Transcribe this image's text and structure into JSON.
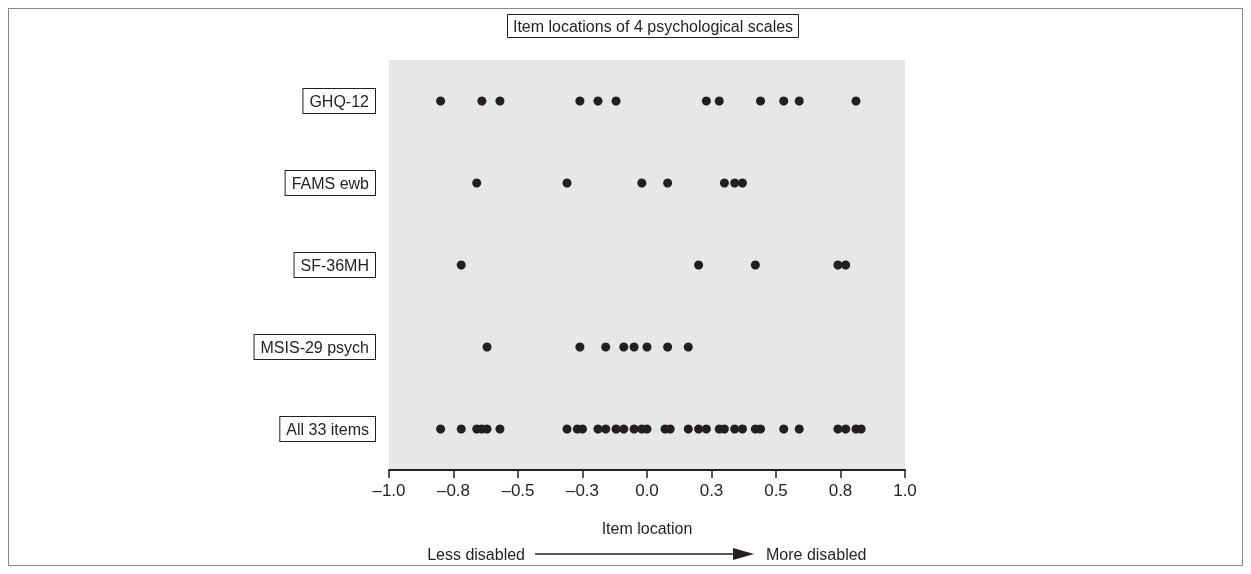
{
  "chart_data": {
    "type": "scatter",
    "orientation": "horizontal",
    "title": "Item locations of 4 psychological scales",
    "xlabel": "Item location",
    "annotations": [
      "Less disabled",
      "More disabled"
    ],
    "marker": "circle",
    "grid": false,
    "xlim": [
      -1,
      1
    ],
    "xticks": [
      {
        "value": -1,
        "label": "–1.0"
      },
      {
        "value": -0.75,
        "label": "–0.8"
      },
      {
        "value": -0.5,
        "label": "–0.5"
      },
      {
        "value": -0.25,
        "label": "–0.3"
      },
      {
        "value": 0,
        "label": "0.0"
      },
      {
        "value": 0.25,
        "label": "0.3"
      },
      {
        "value": 0.5,
        "label": "0.5"
      },
      {
        "value": 0.75,
        "label": "0.8"
      },
      {
        "value": 1,
        "label": "1.0"
      }
    ],
    "categories": [
      "GHQ-12",
      "FAMS ewb",
      "SF-36MH",
      "MSIS-29 psych",
      "All 33 items"
    ],
    "series": [
      {
        "color": "#231f20",
        "x": [
          "GHQ-12",
          "GHQ-12",
          "GHQ-12",
          "GHQ-12",
          "GHQ-12",
          "GHQ-12",
          "GHQ-12",
          "GHQ-12",
          "GHQ-12",
          "GHQ-12",
          "GHQ-12",
          "GHQ-12"
        ],
        "values": [
          -0.8,
          -0.64,
          -0.57,
          -0.26,
          -0.19,
          -0.12,
          0.23,
          0.28,
          0.44,
          0.53,
          0.59,
          0.81
        ]
      },
      {
        "color": "#231f20",
        "x": [
          "FAMS ewb",
          "FAMS ewb",
          "FAMS ewb",
          "FAMS ewb",
          "FAMS ewb",
          "FAMS ewb",
          "FAMS ewb"
        ],
        "values": [
          -0.66,
          -0.31,
          -0.02,
          0.08,
          0.3,
          0.34,
          0.37
        ]
      },
      {
        "color": "#231f20",
        "x": [
          "SF-36MH",
          "SF-36MH",
          "SF-36MH",
          "SF-36MH",
          "SF-36MH"
        ],
        "values": [
          -0.72,
          0.2,
          0.42,
          0.74,
          0.77
        ]
      },
      {
        "color": "#231f20",
        "x": [
          "MSIS-29 psych",
          "MSIS-29 psych",
          "MSIS-29 psych",
          "MSIS-29 psych",
          "MSIS-29 psych",
          "MSIS-29 psych",
          "MSIS-29 psych",
          "MSIS-29 psych"
        ],
        "values": [
          -0.62,
          -0.26,
          -0.16,
          -0.09,
          -0.05,
          0.0,
          0.08,
          0.16
        ]
      },
      {
        "color": "#231f20",
        "x": [
          "All 33 items",
          "All 33 items",
          "All 33 items",
          "All 33 items",
          "All 33 items",
          "All 33 items",
          "All 33 items",
          "All 33 items",
          "All 33 items",
          "All 33 items",
          "All 33 items",
          "All 33 items",
          "All 33 items",
          "All 33 items",
          "All 33 items",
          "All 33 items",
          "All 33 items",
          "All 33 items",
          "All 33 items",
          "All 33 items",
          "All 33 items",
          "All 33 items",
          "All 33 items",
          "All 33 items",
          "All 33 items",
          "All 33 items",
          "All 33 items",
          "All 33 items",
          "All 33 items",
          "All 33 items",
          "All 33 items",
          "All 33 items",
          "All 33 items"
        ],
        "values": [
          -0.8,
          -0.72,
          -0.66,
          -0.64,
          -0.62,
          -0.57,
          -0.31,
          -0.27,
          -0.25,
          -0.19,
          -0.16,
          -0.12,
          -0.09,
          -0.05,
          -0.02,
          0.0,
          0.07,
          0.09,
          0.16,
          0.2,
          0.23,
          0.28,
          0.3,
          0.34,
          0.37,
          0.42,
          0.44,
          0.53,
          0.59,
          0.74,
          0.77,
          0.81,
          0.83
        ]
      }
    ]
  }
}
